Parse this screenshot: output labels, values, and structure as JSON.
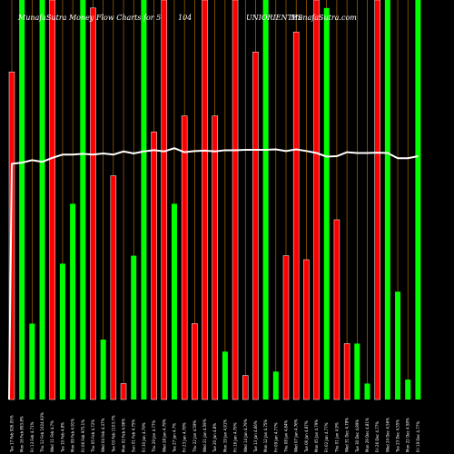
{
  "header": {
    "left": "MunafaSutra Money Flow  Charts for 5",
    "code": "104",
    "company": "UNIORIENTES",
    "right": "MunafaSutra.com"
  },
  "colors": {
    "background": "#000000",
    "up": "#00ff00",
    "down": "#ff0000",
    "line": "#ffffff",
    "grid": "#cc7a00"
  },
  "chart_data": {
    "type": "bar",
    "title": "",
    "categories": [
      "Tue 17 Feb 2026",
      "Mon 16 Feb 2026",
      "Fri 13 Feb 2026",
      "Thu 12 Feb 2026",
      "Wed 11 Feb 2026",
      "Tue 10 Feb 2026",
      "Mon 09 Feb 2026",
      "Fri 06 Feb 2026",
      "Thu 05 Feb 2026",
      "Wed 04 Feb 2026",
      "Tue 03 Feb 2026",
      "Mon 02 Feb 2026",
      "Sun 01 Feb 2026",
      "Fri 30 Jan 2026",
      "Thu 29 Jan 2026",
      "Wed 28 Jan 2026",
      "Tue 27 Jan 2026",
      "Fri 23 Jan 2026",
      "Thu 22 Jan 2026",
      "Wed 21 Jan 2026",
      "Tue 20 Jan 2026",
      "Mon 19 Jan 2026",
      "Fri 16 Jan 2026",
      "Wed 14 Jan 2026",
      "Tue 13 Jan 2026",
      "Mon 12 Jan 2026",
      "Fri 09 Jan 2026",
      "Thu 08 Jan 2026",
      "Wed 07 Jan 2026",
      "Tue 06 Jan 2026",
      "Mon 05 Jan 2026",
      "Fri 02 Jan 2026",
      "Thu 01 Jan 2026",
      "Wed 31 Dec 2025",
      "Tue 30 Dec 2025",
      "Mon 29 Dec 2025",
      "Fri 26 Dec 2025",
      "Wed 24 Dec 2025",
      "Tue 23 Dec 2025",
      "Mon 22 Dec 2025",
      "Fri 19 Dec 2025"
    ],
    "tick_labels": [
      "Tue 17 Feb 926.05%",
      "Mon 16 Feb 893.8%",
      "Fri 13 Feb 4.71%",
      "Thu 12 Feb 1024.93%",
      "Wed 11 Feb 4.7%",
      "Tue 10 Feb 4.8%",
      "Mon 09 Feb 4.91%",
      "Fri 06 Feb 975.1%",
      "Thu 05 Feb 4.72%",
      "Wed 04 Feb 4.37%",
      "Tue 03 Feb 1103.7%",
      "Mon 02 Feb 4.96%",
      "Sun 01 Feb 4.75%",
      "Fri 30 Jan 4.79%",
      "Thu 29 Jan 4.77%",
      "Wed 28 Jan 4.79%",
      "Tue 27 Jan 4.7%",
      "Fri 23 Jan 4.78%",
      "Thu 22 Jan 4.59%",
      "Wed 21 Jan 4.59%",
      "Tue 20 Jan 4.8%",
      "Mon 19 Jan 4.91%",
      "Fri 16 Jan 4.79%",
      "Wed 14 Jan 4.79%",
      "Tue 13 Jan 4.66%",
      "Mon 12 Jan 4.75%",
      "Fri 09 Jan 4.77%",
      "Thu 08 Jan 4.84%",
      "Wed 07 Jan 4.76%",
      "Tue 06 Jan 4.87%",
      "Mon 05 Jan 4.79%",
      "Fri 02 Jan 4.77%",
      "Thu 01 Jan 4.9%",
      "Wed 31 Dec 4.78%",
      "Tue 30 Dec 4.89%",
      "Mon 29 Dec 4.81%",
      "Fri 26 Dec 4.77%",
      "Wed 24 Dec 4.56%",
      "Tue 23 Dec 4.55%",
      "Mon 22 Dec 4.58%",
      "Fri 19 Dec 4.77%"
    ],
    "ylim": [
      0,
      100
    ],
    "bar_values": [
      82,
      100,
      19,
      100,
      100,
      34,
      49,
      100,
      98,
      15,
      56,
      4,
      36,
      100,
      67,
      100,
      49,
      71,
      19,
      100,
      71,
      12,
      100,
      6,
      87,
      100,
      7,
      36,
      92,
      35,
      100,
      98,
      45,
      14,
      14,
      4,
      100,
      100,
      27,
      5,
      100
    ],
    "bar_direction": [
      "down",
      "up",
      "up",
      "up",
      "down",
      "up",
      "up",
      "up",
      "down",
      "up",
      "down",
      "down",
      "up",
      "up",
      "down",
      "down",
      "up",
      "down",
      "down",
      "down",
      "down",
      "up",
      "down",
      "down",
      "down",
      "up",
      "up",
      "down",
      "down",
      "down",
      "down",
      "up",
      "down",
      "down",
      "up",
      "up",
      "down",
      "up",
      "up",
      "up",
      "up"
    ],
    "line_values": [
      59,
      59.5,
      59.5,
      59.5,
      59.5,
      59.5,
      59.5,
      59.5,
      59.5,
      59.5,
      59.5,
      59.5,
      59.5,
      59.5,
      59.5,
      59.5,
      59.5,
      59.5,
      59.5,
      59.5,
      59.5,
      59.5,
      59.5,
      59.5,
      59.5,
      59.5,
      59.5,
      59.5,
      59.5,
      59.5,
      59.5,
      59.5,
      59.5,
      59.5,
      59.5,
      59.5,
      59.5,
      59.5,
      59.5,
      59.5,
      59.5
    ],
    "line_series": {
      "values": [
        59,
        59.3,
        59.9,
        59.5,
        60.5,
        61.3,
        61.3,
        61.5,
        61.3,
        61.6,
        61.3,
        62.1,
        61.6,
        62.1,
        62.4,
        62.1,
        62.9,
        61.9,
        62.2,
        62.3,
        62.1,
        62.4,
        62.4,
        62.5,
        62.5,
        62.5,
        62.6,
        62.2,
        62.6,
        62.2,
        61.7,
        60.8,
        60.9,
        61.9,
        61.7,
        61.7,
        61.8,
        61.7,
        60.4,
        60.4,
        60.9
      ],
      "start_value": 0
    },
    "grid": true
  }
}
